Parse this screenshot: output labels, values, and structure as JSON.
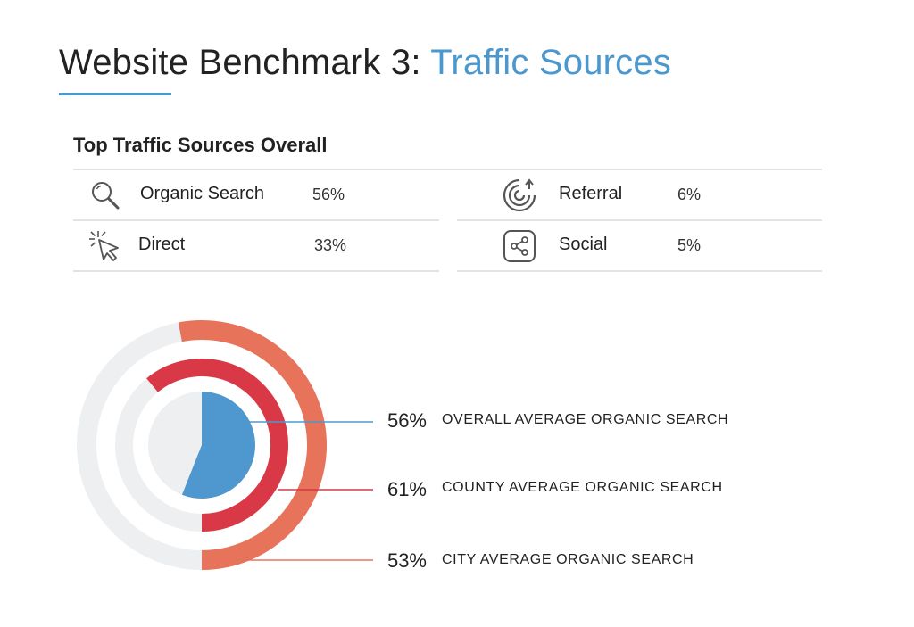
{
  "header": {
    "title_main": "Website Benchmark 3:",
    "title_accent": "Traffic Sources",
    "accent_color": "#4b98cf"
  },
  "summary": {
    "heading": "Top Traffic Sources Overall",
    "sources": [
      {
        "label": "Organic Search",
        "value": "56%",
        "icon": "magnifier-icon"
      },
      {
        "label": "Direct",
        "value": "33%",
        "icon": "cursor-click-icon"
      },
      {
        "label": "Referral",
        "value": "6%",
        "icon": "referral-target-icon"
      },
      {
        "label": "Social",
        "value": "5%",
        "icon": "share-icon"
      }
    ]
  },
  "chart_data": {
    "type": "radial-progress",
    "title": "",
    "series": [
      {
        "value": 56,
        "value_label": "56%",
        "label": "OVERALL AVERAGE ORGANIC SEARCH",
        "color": "#4e98cf",
        "ring": "inner-pie"
      },
      {
        "value": 61,
        "value_label": "61%",
        "label": "COUNTY AVERAGE ORGANIC SEARCH",
        "color": "#d93846",
        "ring": "middle"
      },
      {
        "value": 53,
        "value_label": "53%",
        "label": "CITY AVERAGE ORGANIC SEARCH",
        "color": "#e7735a",
        "ring": "outer"
      }
    ],
    "track_color": "#eeeff1",
    "max": 100
  }
}
